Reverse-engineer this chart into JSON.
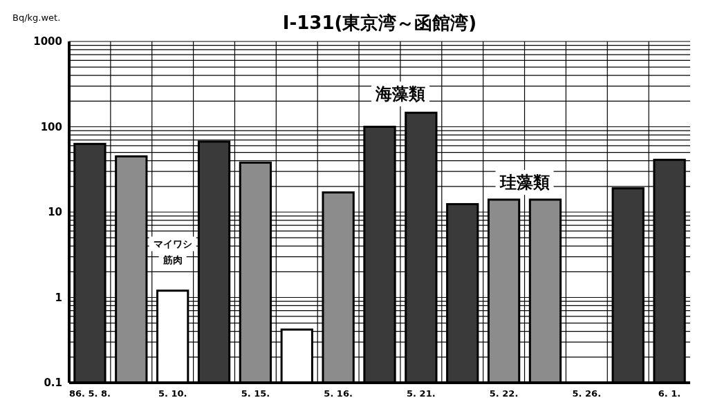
{
  "chart_data": {
    "type": "bar",
    "title": "I-131(東京湾～函館湾)",
    "ylabel": "Bq/kg.wet.",
    "categories": [
      "86. 5. 8.",
      null,
      "5. 10.",
      null,
      "5. 15.",
      null,
      "5. 16.",
      null,
      "5. 21.",
      null,
      "5. 22.",
      null,
      "5. 26.",
      null,
      "6. 1."
    ],
    "values": [
      63,
      45,
      1.2,
      67,
      38,
      0.42,
      17,
      100,
      146,
      12.4,
      14,
      14,
      null,
      19,
      41
    ],
    "colors": [
      "#3a3a3a",
      "#8c8c8c",
      "#ffffff",
      "#3a3a3a",
      "#8c8c8c",
      "#ffffff",
      "#8c8c8c",
      "#3a3a3a",
      "#3a3a3a",
      "#3a3a3a",
      "#8c8c8c",
      "#8c8c8c",
      null,
      "#3a3a3a",
      "#3a3a3a"
    ],
    "log": true,
    "ylim": [
      0.1,
      1000
    ],
    "yticks": [
      0.1,
      1,
      10,
      100,
      1000
    ],
    "grid": true,
    "annotations": [
      "マイワシ",
      "筋肉",
      "海藻類",
      "珪藻類"
    ]
  }
}
